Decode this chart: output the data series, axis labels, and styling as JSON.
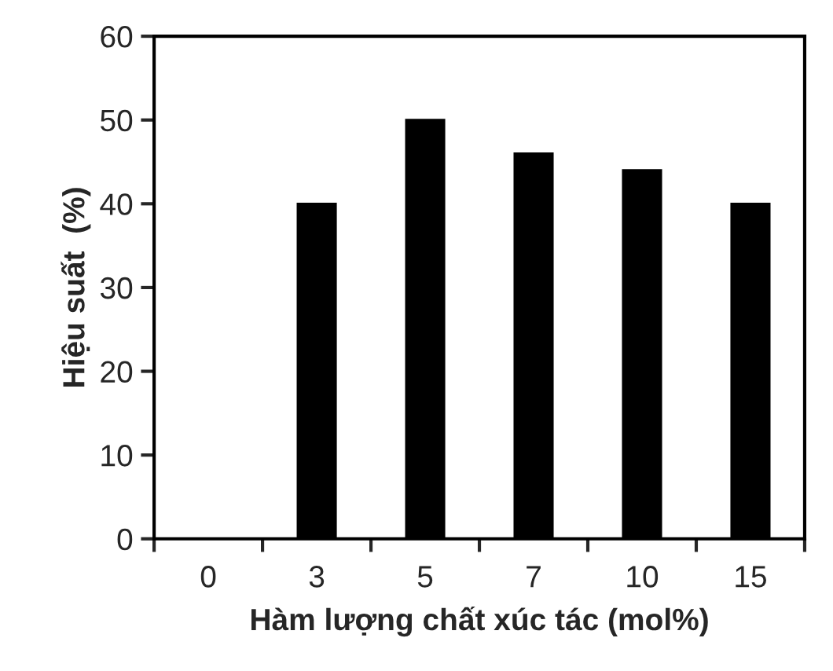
{
  "chart_data": {
    "type": "bar",
    "xlabel": "Hàm lượng chất xúc tác (mol%)",
    "ylabel": "Hiệu suất  (%)",
    "categories": [
      "0",
      "3",
      "5",
      "7",
      "10",
      "15"
    ],
    "values": [
      0,
      40,
      50,
      46,
      44,
      40
    ],
    "color": "#000000",
    "ylim": [
      0,
      60
    ],
    "yticks": [
      0,
      10,
      20,
      30,
      40,
      50,
      60
    ],
    "grid": false,
    "legend": false
  }
}
